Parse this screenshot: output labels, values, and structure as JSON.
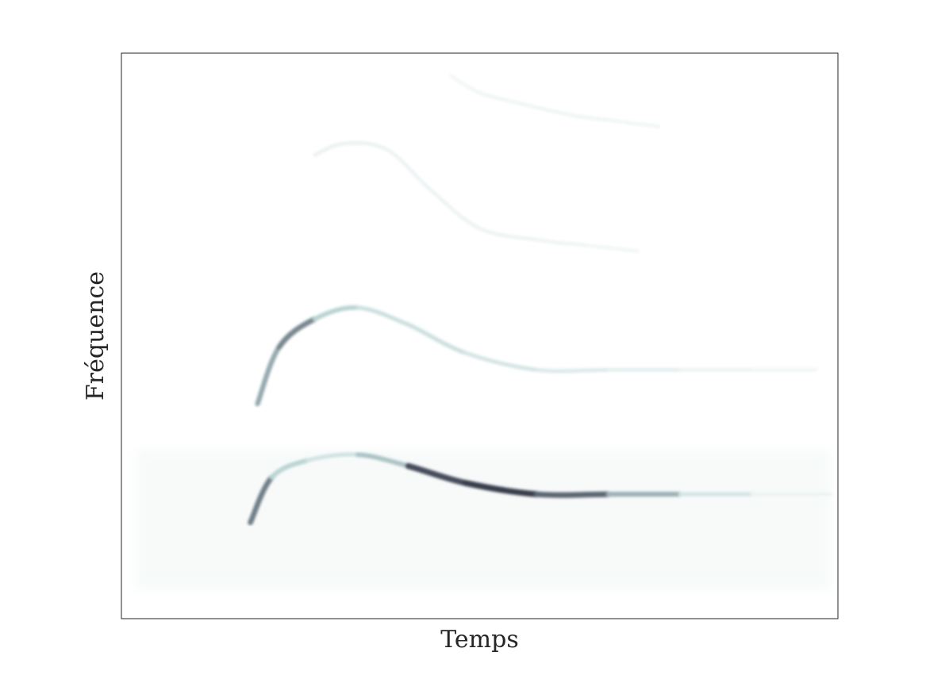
{
  "chart_data": {
    "type": "heatmap",
    "title": "",
    "xlabel": "Temps",
    "ylabel": "Fréquence",
    "x_ticks": [],
    "y_ticks": [],
    "grid": false,
    "colormap": "bone_r",
    "colors": {
      "low": "#ffffff",
      "mid": "#b9d3d3",
      "high": "#1a1a2e",
      "frame": "#262626"
    },
    "series": [
      {
        "harmonic": 1,
        "points": [
          [
            0.18,
            0.17
          ],
          [
            0.21,
            0.25
          ],
          [
            0.26,
            0.28
          ],
          [
            0.33,
            0.29
          ],
          [
            0.4,
            0.27
          ],
          [
            0.48,
            0.24
          ],
          [
            0.58,
            0.22
          ],
          [
            0.68,
            0.22
          ],
          [
            0.78,
            0.22
          ],
          [
            0.88,
            0.22
          ],
          [
            0.99,
            0.22
          ]
        ],
        "intensity": [
          0.85,
          0.55,
          0.35,
          0.25,
          0.75,
          0.95,
          0.85,
          0.7,
          0.4,
          0.15,
          0.1
        ]
      },
      {
        "harmonic": 2,
        "points": [
          [
            0.19,
            0.38
          ],
          [
            0.22,
            0.48
          ],
          [
            0.27,
            0.53
          ],
          [
            0.33,
            0.55
          ],
          [
            0.4,
            0.52
          ],
          [
            0.48,
            0.47
          ],
          [
            0.58,
            0.44
          ],
          [
            0.68,
            0.44
          ],
          [
            0.78,
            0.44
          ],
          [
            0.88,
            0.44
          ],
          [
            0.97,
            0.44
          ]
        ],
        "intensity": [
          0.4,
          0.75,
          0.6,
          0.3,
          0.35,
          0.3,
          0.25,
          0.2,
          0.15,
          0.1,
          0.08
        ]
      },
      {
        "harmonic": 3,
        "points": [
          [
            0.27,
            0.82
          ],
          [
            0.31,
            0.84
          ],
          [
            0.37,
            0.83
          ],
          [
            0.43,
            0.76
          ],
          [
            0.5,
            0.69
          ],
          [
            0.58,
            0.67
          ],
          [
            0.65,
            0.66
          ],
          [
            0.72,
            0.65
          ]
        ],
        "intensity": [
          0.12,
          0.15,
          0.12,
          0.12,
          0.12,
          0.12,
          0.1,
          0.08
        ]
      },
      {
        "harmonic": 4,
        "points": [
          [
            0.46,
            0.96
          ],
          [
            0.5,
            0.93
          ],
          [
            0.56,
            0.91
          ],
          [
            0.63,
            0.89
          ],
          [
            0.69,
            0.88
          ],
          [
            0.75,
            0.87
          ]
        ],
        "intensity": [
          0.08,
          0.1,
          0.1,
          0.1,
          0.1,
          0.08
        ]
      }
    ],
    "noise_band": {
      "x": [
        0.02,
        0.99
      ],
      "y": [
        0.05,
        0.3
      ],
      "intensity": 0.05
    }
  }
}
